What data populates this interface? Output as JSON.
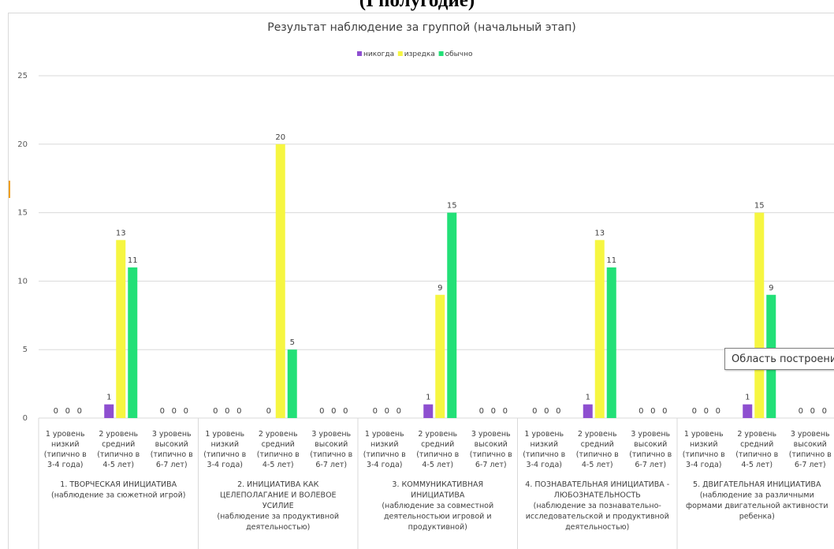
{
  "page": {
    "heading": "(I полугодие)"
  },
  "tooltip": "Область построени",
  "colors": {
    "never": "#8e4fd0",
    "rarely": "#f6f641",
    "usually": "#22e077",
    "grid": "#d9d9d9",
    "text": "#595959"
  },
  "chart_data": {
    "type": "bar",
    "title": "Результат наблюдение за группой (начальный этап)",
    "xlabel": "",
    "ylabel": "",
    "ylim": [
      0,
      25
    ],
    "yticks": [
      "0",
      "5",
      "10",
      "15",
      "20",
      "25"
    ],
    "grid": true,
    "legend_position": "top",
    "series": [
      {
        "name": "никогда",
        "values": [
          0,
          1,
          0,
          0,
          0,
          0,
          0,
          1,
          0,
          0,
          1,
          0,
          0,
          1,
          0
        ]
      },
      {
        "name": "изредка",
        "values": [
          0,
          13,
          0,
          0,
          20,
          0,
          0,
          9,
          0,
          0,
          13,
          0,
          0,
          15,
          0
        ]
      },
      {
        "name": "обычно",
        "values": [
          0,
          11,
          0,
          0,
          5,
          0,
          0,
          15,
          0,
          0,
          11,
          0,
          0,
          9,
          0
        ]
      }
    ],
    "level_labels": [
      [
        "1 уровень",
        "низкий",
        "(типично в",
        "3-4 года)"
      ],
      [
        "2 уровень",
        "средний",
        "(типично в",
        "4-5 лет)"
      ],
      [
        "3 уровень",
        "высокий",
        "(типично в",
        "6-7 лет)"
      ]
    ],
    "groups": [
      {
        "lines": [
          "1. ТВОРЧЕСКАЯ ИНИЦИАТИВА",
          "(наблюдение за сюжетной игрой)"
        ]
      },
      {
        "lines": [
          "2. ИНИЦИАТИВА КАК",
          "ЦЕЛЕПОЛАГАНИЕ И ВОЛЕВОЕ",
          "УСИЛИЕ",
          "(наблюдение за продуктивной",
          "деятельностью)"
        ]
      },
      {
        "lines": [
          "3. КОММУНИКАТИВНАЯ",
          "ИНИЦИАТИВА",
          "(наблюдение за совместной",
          "деятельностьюи игровой и",
          "продуктивной)"
        ]
      },
      {
        "lines": [
          "4. ПОЗНАВАТЕЛЬНАЯ ИНИЦИАТИВА -",
          "ЛЮБОЗНАТЕЛЬНОСТЬ",
          "(наблюдение за познавательно-",
          "исследовательской и продуктивной",
          "деятельностью)"
        ]
      },
      {
        "lines": [
          "5. ДВИГАТЕЛЬНАЯ ИНИЦИАТИВА",
          "(наблюдение за различными",
          "формами двигательной активности",
          "ребенка)"
        ]
      }
    ]
  }
}
